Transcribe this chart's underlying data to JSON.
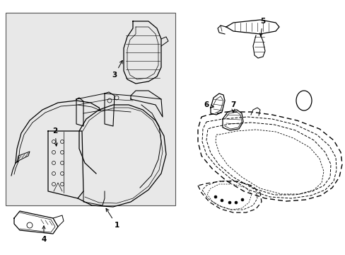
{
  "background_color": "#ffffff",
  "box_facecolor": "#e8e8e8",
  "box_edgecolor": "#444444",
  "line_color": "#000000",
  "figsize": [
    4.89,
    3.6
  ],
  "dpi": 100,
  "xlim": [
    0,
    489
  ],
  "ylim": [
    0,
    360
  ]
}
